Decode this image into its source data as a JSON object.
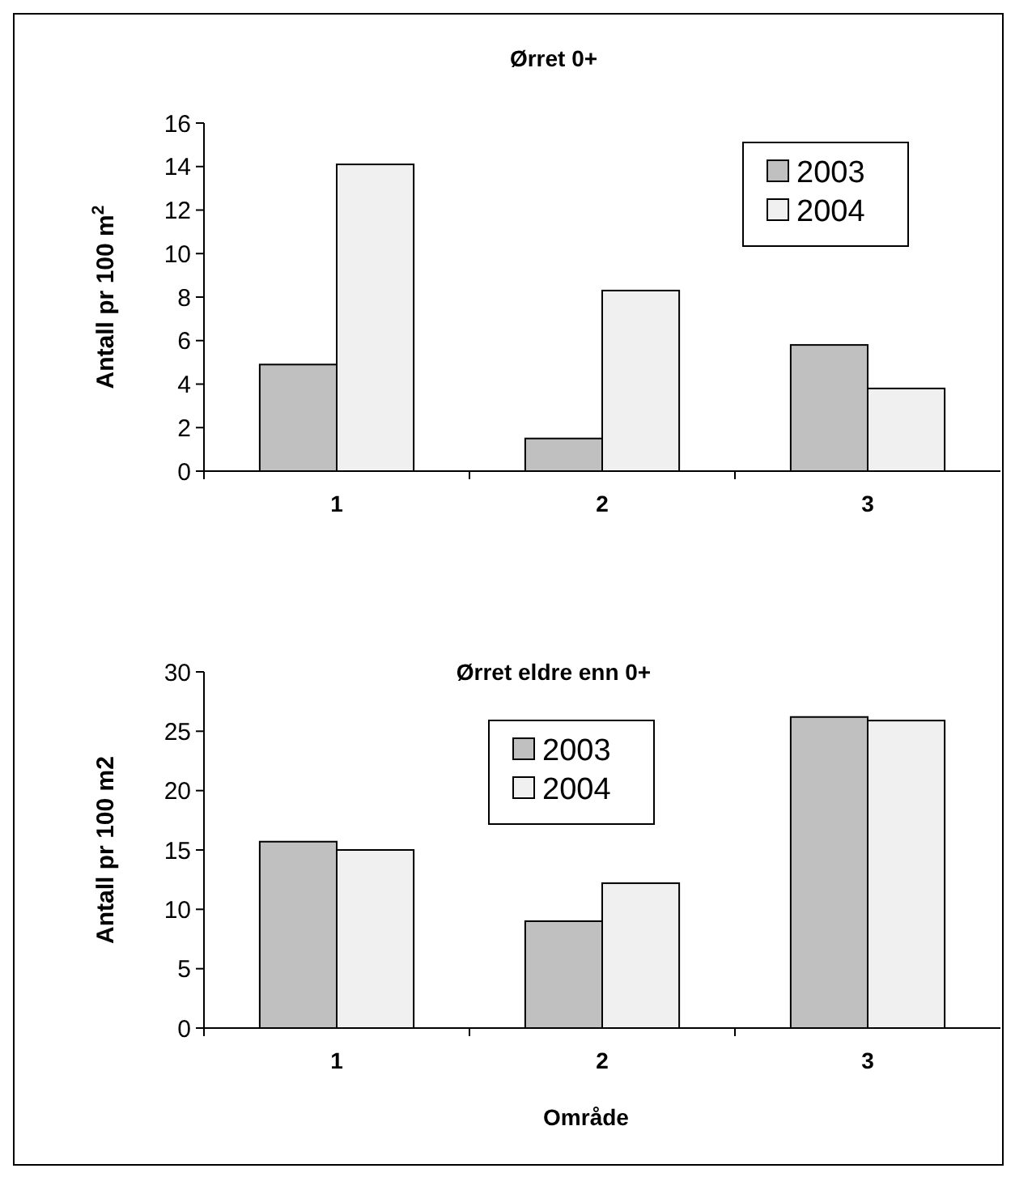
{
  "chart_data": [
    {
      "type": "bar",
      "title": "Ørret 0+",
      "ylabel": "Antall pr 100 m$^{2}$",
      "categories": [
        "1",
        "2",
        "3"
      ],
      "series": [
        {
          "name": "2003",
          "color": "#c0c0c0",
          "values": [
            4.9,
            1.5,
            5.8
          ]
        },
        {
          "name": "2004",
          "color": "#f0f0f0",
          "values": [
            14.1,
            8.3,
            3.8
          ]
        }
      ],
      "ylim": [
        0,
        16
      ],
      "yticks": [
        0,
        2,
        4,
        6,
        8,
        10,
        12,
        14,
        16
      ],
      "legend": "top right"
    },
    {
      "type": "bar",
      "title": "Ørret eldre enn 0+",
      "xlabel": "Område",
      "ylabel": "Antall pr 100 m2",
      "categories": [
        "1",
        "2",
        "3"
      ],
      "series": [
        {
          "name": "2003",
          "color": "#c0c0c0",
          "values": [
            15.7,
            9.0,
            26.2
          ]
        },
        {
          "name": "2004",
          "color": "#f0f0f0",
          "values": [
            15.0,
            12.2,
            25.9
          ]
        }
      ],
      "ylim": [
        0,
        30
      ],
      "yticks": [
        0,
        5,
        10,
        15,
        20,
        25,
        30
      ],
      "legend": "top"
    }
  ]
}
